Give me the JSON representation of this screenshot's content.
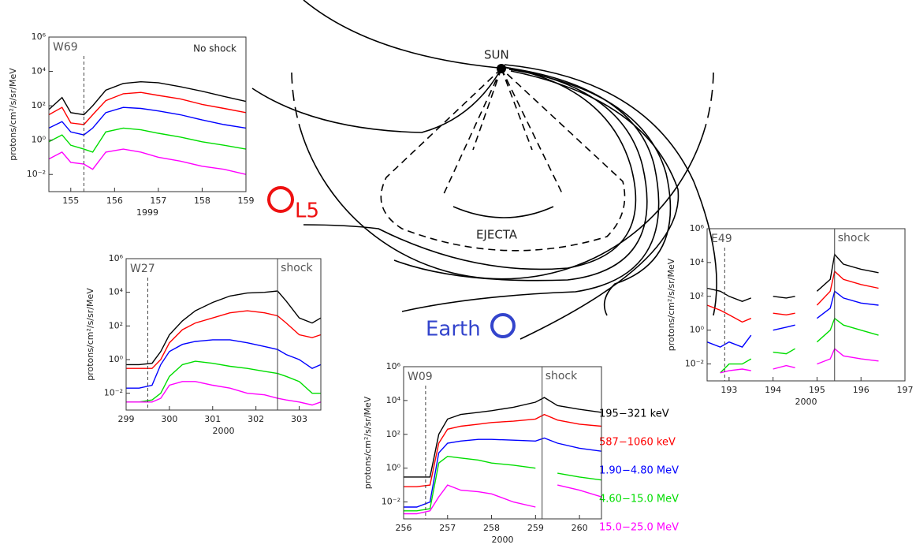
{
  "chart_data": [
    {
      "type": "line",
      "annotation": "W69",
      "note": "No shock",
      "ylabel": "protons/cm²/s/sr/MeV",
      "xlabel": "1999",
      "x": [
        154.5,
        154.8,
        155.0,
        155.3,
        155.5,
        155.8,
        156.2,
        156.6,
        157,
        157.5,
        158,
        158.5,
        159
      ],
      "series": [
        {
          "color": "#000000",
          "values": [
            60,
            300,
            40,
            30,
            100,
            800,
            2000,
            2500,
            2200,
            1300,
            700,
            350,
            180
          ]
        },
        {
          "color": "#ff0000",
          "values": [
            30,
            80,
            10,
            8,
            30,
            200,
            500,
            600,
            400,
            250,
            120,
            70,
            40
          ]
        },
        {
          "color": "#0000ff",
          "values": [
            5,
            12,
            3,
            2,
            5,
            40,
            80,
            70,
            50,
            30,
            15,
            8,
            5
          ]
        },
        {
          "color": "#00dd00",
          "values": [
            0.8,
            2,
            0.5,
            0.3,
            0.2,
            3,
            5,
            4,
            2.5,
            1.5,
            0.8,
            0.5,
            0.3
          ]
        },
        {
          "color": "#ff00ff",
          "values": [
            0.08,
            0.2,
            0.05,
            0.04,
            0.02,
            0.2,
            0.3,
            0.2,
            0.1,
            0.06,
            0.03,
            0.02,
            0.01
          ]
        }
      ],
      "xlim": [
        154.5,
        159
      ],
      "xticks": [
        155,
        156,
        157,
        158,
        159
      ],
      "ylim": [
        0.001,
        1000000
      ],
      "log_y": true,
      "yticks": [
        {
          "value": 0.01,
          "label": "10⁻²"
        },
        {
          "value": 1,
          "label": "10⁰"
        },
        {
          "value": 100,
          "label": "10²"
        },
        {
          "value": 10000,
          "label": "10⁴"
        },
        {
          "value": 1000000,
          "label": "10⁶"
        }
      ],
      "flare_x": 155.3
    },
    {
      "type": "line",
      "annotation": "W27",
      "ylabel": "protons/cm²/s/sr/MeV",
      "xlabel": "2000",
      "x": [
        299,
        299.3,
        299.6,
        299.8,
        300,
        300.3,
        300.6,
        301,
        301.4,
        301.8,
        302.2,
        302.5,
        302.7,
        303,
        303.3,
        303.5
      ],
      "series": [
        {
          "color": "#000000",
          "values": [
            0.5,
            0.5,
            0.6,
            3,
            30,
            200,
            800,
            2500,
            6000,
            9000,
            10000,
            12000,
            3000,
            300,
            150,
            300
          ]
        },
        {
          "color": "#ff0000",
          "values": [
            0.3,
            0.3,
            0.3,
            1,
            10,
            60,
            150,
            300,
            600,
            800,
            600,
            400,
            150,
            30,
            20,
            30
          ]
        },
        {
          "color": "#0000ff",
          "values": [
            0.02,
            0.02,
            0.03,
            0.5,
            3,
            8,
            12,
            15,
            15,
            10,
            6,
            4,
            2,
            1,
            0.3,
            0.5
          ]
        },
        {
          "color": "#00dd00",
          "values": [
            0.003,
            0.003,
            0.004,
            0.01,
            0.1,
            0.5,
            0.8,
            0.6,
            0.4,
            0.3,
            0.2,
            0.15,
            0.1,
            0.05,
            0.01,
            0.01
          ]
        },
        {
          "color": "#ff00ff",
          "values": [
            0.003,
            0.003,
            0.003,
            0.005,
            0.03,
            0.05,
            0.05,
            0.03,
            0.02,
            0.01,
            0.008,
            0.005,
            0.004,
            0.003,
            0.002,
            0.003
          ]
        }
      ],
      "xlim": [
        299,
        303.5
      ],
      "xticks": [
        299,
        300,
        301,
        302,
        303
      ],
      "ylim": [
        0.001,
        1000000
      ],
      "log_y": true,
      "yticks": [
        {
          "value": 0.01,
          "label": "10⁻²"
        },
        {
          "value": 1,
          "label": "10⁰"
        },
        {
          "value": 100,
          "label": "10²"
        },
        {
          "value": 10000,
          "label": "10⁴"
        },
        {
          "value": 1000000,
          "label": "10⁶"
        }
      ],
      "flare_x": 299.5,
      "shock_x": 302.5,
      "shock_label": "shock"
    },
    {
      "type": "line",
      "annotation": "W09",
      "ylabel": "protons/cm²/s/sr/MeV",
      "xlabel": "2000",
      "x": [
        256,
        256.3,
        256.6,
        256.8,
        257,
        257.3,
        257.7,
        258,
        258.5,
        259,
        259.2,
        259.5,
        260,
        260.5
      ],
      "series": [
        {
          "name": "195−321  keV",
          "color": "#000000",
          "values": [
            0.3,
            0.3,
            0.3,
            100,
            800,
            1500,
            2000,
            2500,
            4000,
            8000,
            15000,
            5000,
            3000,
            2000
          ]
        },
        {
          "name": "587−1060  keV",
          "color": "#ff0000",
          "values": [
            0.08,
            0.08,
            0.1,
            30,
            200,
            300,
            400,
            500,
            600,
            800,
            1500,
            700,
            400,
            300
          ]
        },
        {
          "name": "1.90−4.80  MeV",
          "color": "#0000ff",
          "values": [
            0.005,
            0.005,
            0.01,
            8,
            30,
            40,
            50,
            50,
            45,
            40,
            60,
            30,
            15,
            10
          ]
        },
        {
          "name": "4.60−15.0  MeV",
          "color": "#00dd00",
          "values": [
            0.003,
            0.003,
            0.004,
            2,
            5,
            4,
            3,
            2,
            1.5,
            1,
            null,
            0.5,
            0.3,
            0.2
          ]
        },
        {
          "name": "15.0−25.0  MeV",
          "color": "#ff00ff",
          "values": [
            0.002,
            0.002,
            0.003,
            0.02,
            0.1,
            0.05,
            0.04,
            0.03,
            0.01,
            0.005,
            null,
            0.1,
            0.05,
            0.02
          ]
        }
      ],
      "xlim": [
        256,
        260.5
      ],
      "xticks": [
        256,
        257,
        258,
        259,
        260
      ],
      "ylim": [
        0.001,
        1000000
      ],
      "log_y": true,
      "yticks": [
        {
          "value": 0.01,
          "label": "10⁻²"
        },
        {
          "value": 1,
          "label": "10⁰"
        },
        {
          "value": 100,
          "label": "10²"
        },
        {
          "value": 10000,
          "label": "10⁴"
        },
        {
          "value": 1000000,
          "label": "10⁶"
        }
      ],
      "flare_x": 256.5,
      "shock_x": 259.15,
      "shock_label": "shock"
    },
    {
      "type": "line",
      "annotation": "E49",
      "ylabel": "protons/cm²/s/sr/MeV",
      "xlabel": "2000",
      "x": [
        192.5,
        192.8,
        193,
        193.3,
        193.5,
        193.7,
        194,
        194.3,
        194.5,
        194.7,
        195,
        195.3,
        195.4,
        195.6,
        196,
        196.4
      ],
      "series": [
        {
          "color": "#000000",
          "values": [
            300,
            200,
            100,
            50,
            80,
            null,
            100,
            80,
            100,
            null,
            200,
            1000,
            30000,
            8000,
            4000,
            2500
          ]
        },
        {
          "color": "#ff0000",
          "values": [
            30,
            15,
            8,
            3,
            5,
            null,
            10,
            8,
            10,
            null,
            30,
            200,
            3000,
            1000,
            500,
            300
          ]
        },
        {
          "color": "#0000ff",
          "values": [
            0.2,
            0.1,
            0.2,
            0.1,
            0.5,
            null,
            1,
            1.5,
            2,
            null,
            5,
            20,
            200,
            80,
            40,
            30
          ]
        },
        {
          "color": "#00dd00",
          "values": [
            null,
            0.003,
            0.01,
            0.01,
            0.02,
            null,
            0.05,
            0.04,
            0.08,
            null,
            0.2,
            1,
            5,
            2,
            1,
            0.5
          ]
        },
        {
          "color": "#ff00ff",
          "values": [
            null,
            0.003,
            0.004,
            0.005,
            0.004,
            null,
            0.005,
            0.008,
            0.006,
            null,
            0.01,
            0.02,
            0.08,
            0.03,
            0.02,
            0.015
          ]
        }
      ],
      "xlim": [
        192.5,
        197
      ],
      "xticks": [
        193,
        194,
        195,
        196,
        197
      ],
      "ylim": [
        0.001,
        1000000
      ],
      "log_y": true,
      "yticks": [
        {
          "value": 0.01,
          "label": "10⁻²"
        },
        {
          "value": 1,
          "label": "10⁰"
        },
        {
          "value": 100,
          "label": "10²"
        },
        {
          "value": 10000,
          "label": "10⁴"
        },
        {
          "value": 1000000,
          "label": "10⁶"
        }
      ],
      "flare_x": 192.9,
      "shock_x": 195.4,
      "shock_label": "shock"
    }
  ],
  "diagram": {
    "sun": "SUN",
    "ejecta": "EJECTA",
    "l5": "L5",
    "earth": "Earth"
  }
}
